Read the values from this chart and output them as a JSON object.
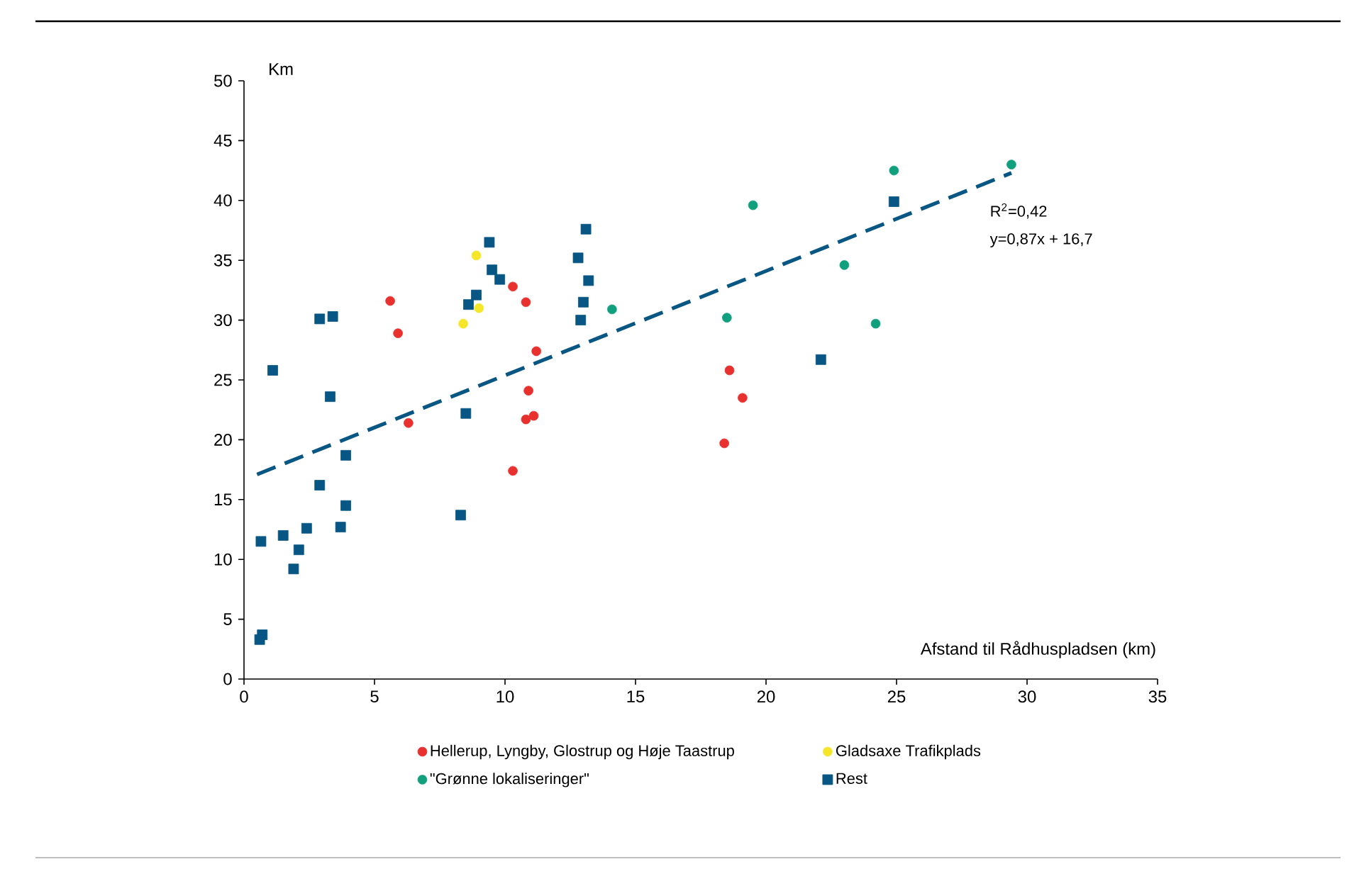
{
  "chart_data": {
    "type": "scatter",
    "xlabel": "Afstand til Rådhuspladsen (km)",
    "ylabel": "Km",
    "xlim": [
      0,
      35
    ],
    "xticks": [
      0,
      5,
      10,
      15,
      20,
      25,
      30,
      35
    ],
    "ylim": [
      0,
      50
    ],
    "yticks": [
      0,
      5,
      10,
      15,
      20,
      25,
      30,
      35,
      40,
      45,
      50
    ],
    "grid": false,
    "legend": "bottom",
    "annotations": [
      "R$^{2}$=0,42",
      "y=0,87x + 16,7"
    ],
    "series": [
      {
        "name": "Hellerup, Lyngby, Glostrup og Høje Taastrup",
        "color": "#e8312e",
        "marker": "circle",
        "x": [
          5.6,
          5.9,
          6.3,
          10.3,
          10.8,
          11.2,
          10.9,
          10.8,
          11.1,
          10.3,
          18.6,
          19.1,
          18.4
        ],
        "values": [
          31.6,
          28.9,
          21.4,
          32.8,
          31.5,
          27.4,
          24.1,
          21.7,
          22.0,
          17.4,
          25.8,
          23.5,
          19.7
        ]
      },
      {
        "name": "Gladsaxe Trafikplads",
        "color": "#f5e62a",
        "marker": "circle",
        "x": [
          8.9,
          9.0,
          8.4
        ],
        "values": [
          35.4,
          31.0,
          29.7
        ]
      },
      {
        "name": "\"Grønne lokaliseringer\"",
        "color": "#11a07e",
        "marker": "circle",
        "x": [
          14.1,
          18.5,
          19.5,
          23.0,
          24.2,
          24.9,
          29.4
        ],
        "values": [
          30.9,
          30.2,
          39.6,
          34.6,
          29.7,
          42.5,
          43.0
        ]
      },
      {
        "name": "Rest",
        "color": "#075683",
        "marker": "square",
        "x": [
          0.7,
          0.6,
          0.65,
          1.5,
          1.1,
          1.9,
          2.1,
          2.4,
          2.9,
          3.4,
          2.9,
          3.3,
          3.9,
          3.7,
          3.9,
          8.3,
          8.5,
          8.6,
          8.9,
          9.4,
          9.5,
          9.8,
          12.9,
          12.8,
          13.1,
          13.2,
          13.0,
          22.1,
          24.9
        ],
        "values": [
          3.7,
          3.3,
          11.5,
          12.0,
          25.8,
          9.2,
          10.8,
          12.6,
          30.1,
          30.3,
          16.2,
          23.6,
          18.7,
          12.7,
          14.5,
          13.7,
          22.2,
          31.3,
          32.1,
          36.5,
          34.2,
          33.4,
          30.0,
          35.2,
          37.6,
          33.3,
          31.5,
          26.7,
          39.9
        ]
      },
      {
        "type": "line",
        "color": "#075683",
        "marker": "none",
        "line_style": "dashed",
        "x": [
          0.5,
          29.4
        ],
        "values": [
          17.1,
          42.3
        ]
      }
    ]
  }
}
